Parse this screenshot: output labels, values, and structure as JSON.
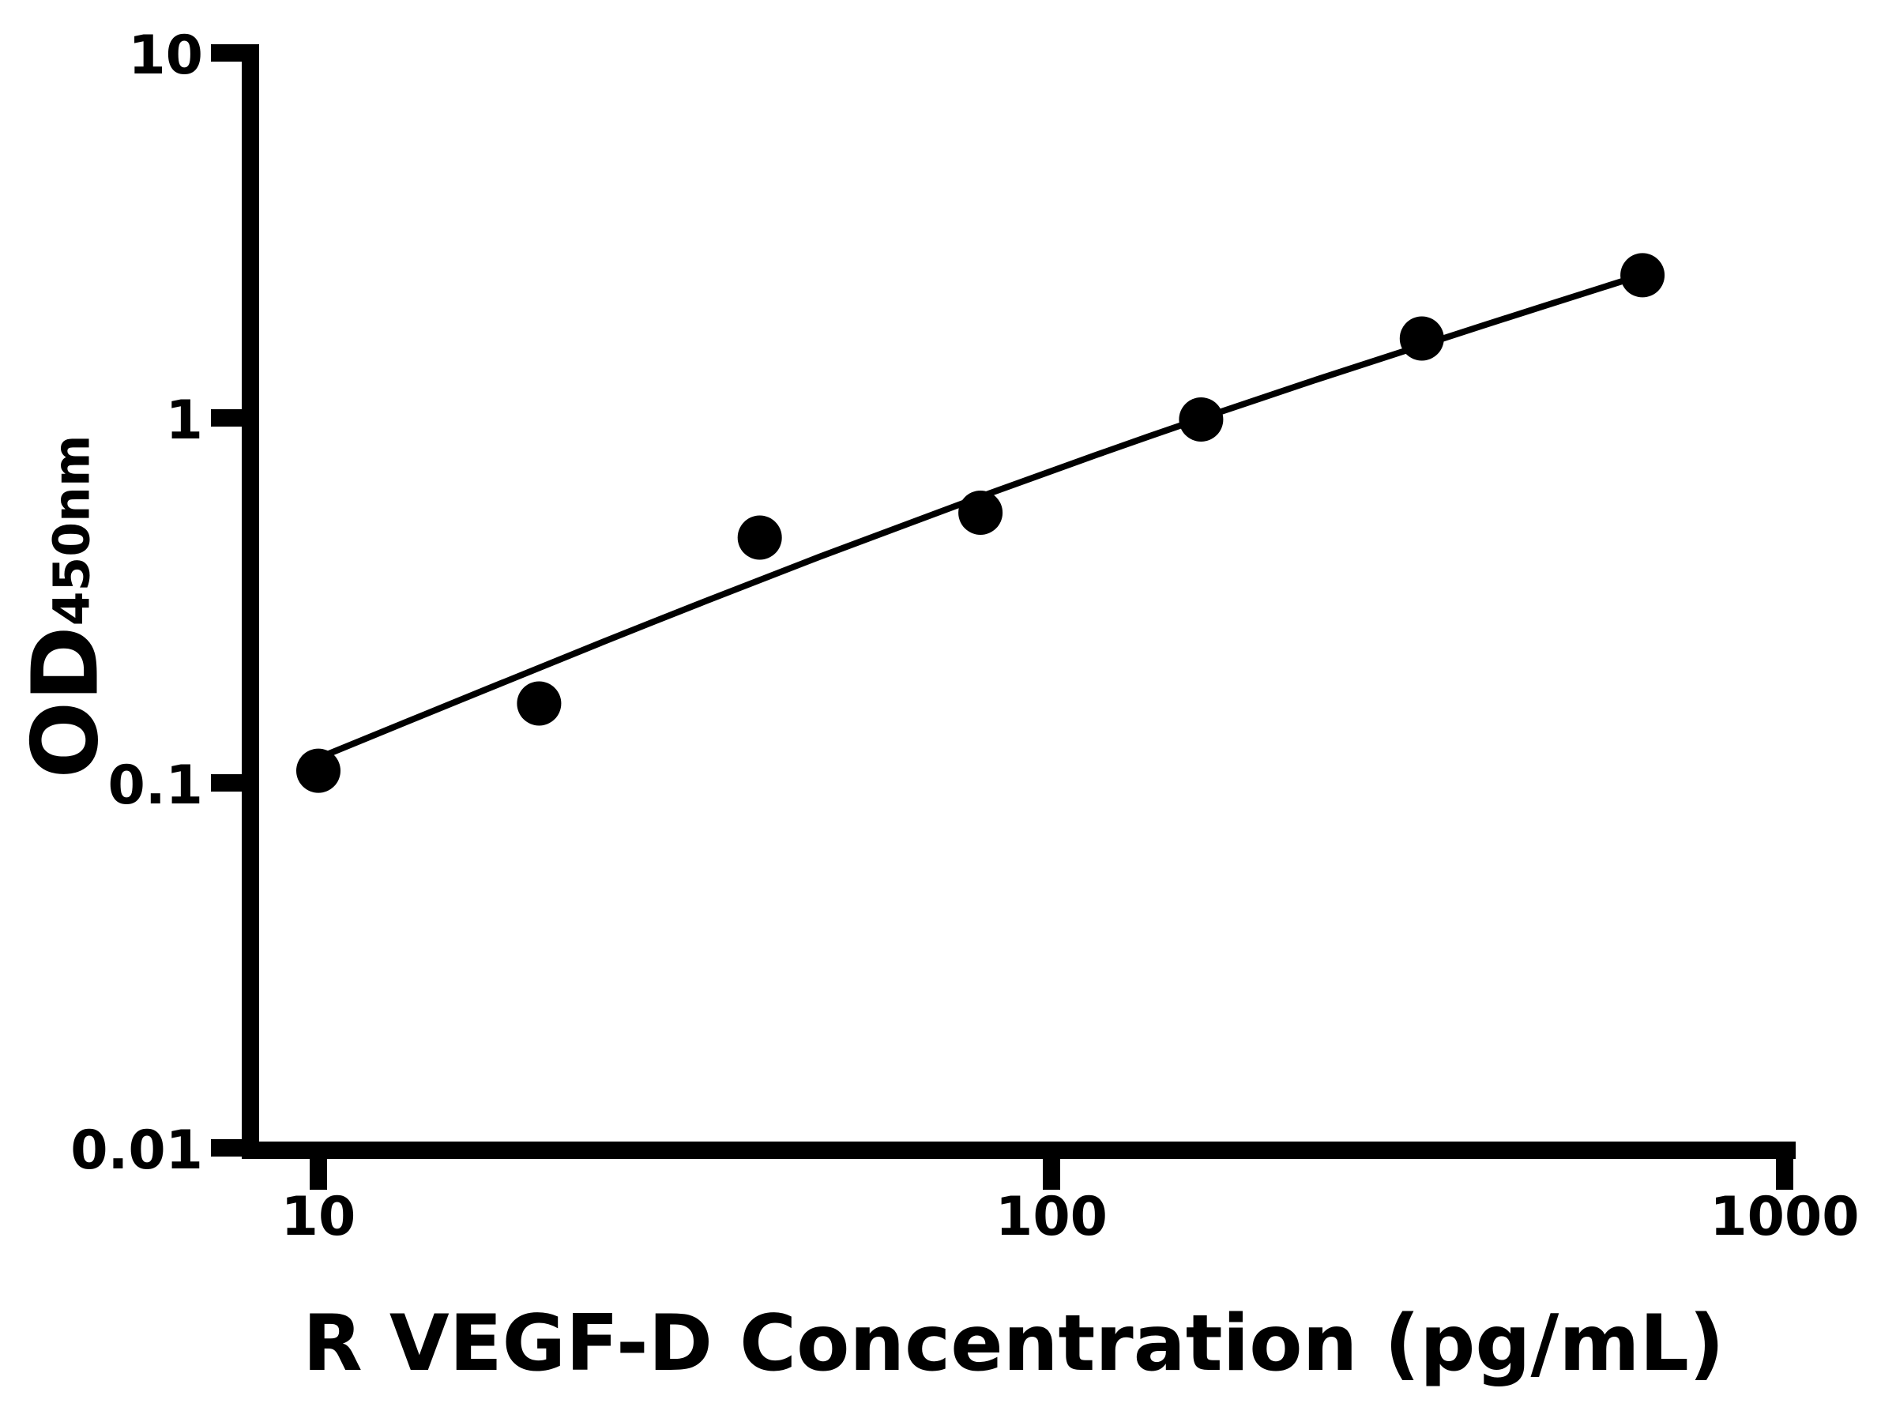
{
  "figure": {
    "background_color": "#ffffff",
    "ink_color": "#000000"
  },
  "chart_data": {
    "type": "scatter",
    "title": "",
    "xlabel": "R VEGF-D Concentration (pg/mL)",
    "ylabel_main": "OD",
    "ylabel_sub": "450nm",
    "x_scale": "log",
    "y_scale": "log",
    "xlim": [
      8.1,
      1000
    ],
    "ylim": [
      0.01,
      10
    ],
    "grid": false,
    "legend": "none",
    "x_ticks": [
      10,
      100,
      1000
    ],
    "x_tick_labels": [
      "10",
      "100",
      "1000"
    ],
    "y_ticks": [
      10,
      1,
      0.1,
      0.01
    ],
    "y_tick_labels": [
      "10",
      "1",
      "0.1",
      "0.01"
    ],
    "series": [
      {
        "name": "standard-points",
        "marker": "filled-circle",
        "x": [
          10,
          20,
          40,
          80,
          160,
          320,
          640
        ],
        "y": [
          0.108,
          0.165,
          0.47,
          0.55,
          0.99,
          1.65,
          2.46
        ]
      }
    ],
    "fit_curve": {
      "name": "standard-curve-fit",
      "x": [
        10,
        17,
        28.6,
        48.2,
        81,
        136,
        229,
        384,
        637
      ],
      "y": [
        0.117,
        0.181,
        0.276,
        0.416,
        0.614,
        0.891,
        1.27,
        1.78,
        2.46
      ]
    }
  }
}
